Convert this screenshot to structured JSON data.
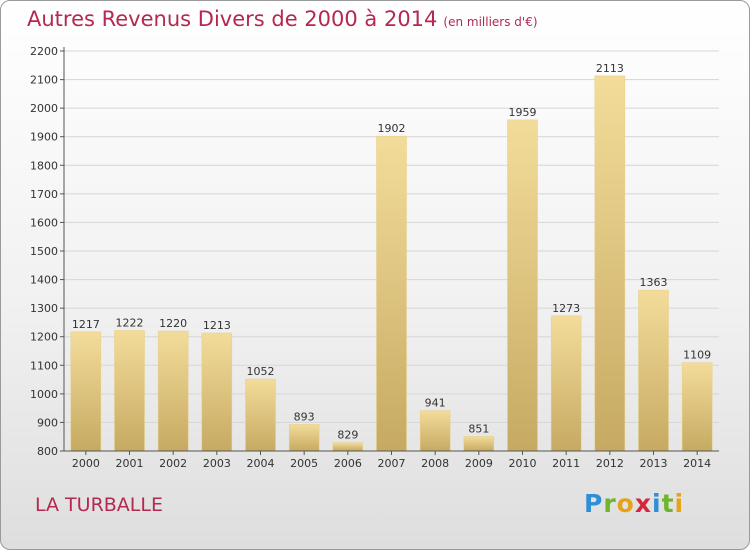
{
  "title": "Autres Revenus Divers de 2000 à 2014",
  "unit_note": "(en milliers d'€)",
  "city": "LA TURBALLE",
  "logo": {
    "letters": [
      "P",
      "r",
      "o",
      "x",
      "i",
      "t",
      "i"
    ],
    "colors": [
      "#2f8fd6",
      "#6fb52c",
      "#e7a21a",
      "#d5273b",
      "#2f8fd6",
      "#6fb52c",
      "#e7a21a"
    ]
  },
  "colors": {
    "accent": "#b5284f",
    "bar_dark": "#c6aa62",
    "bar_light": "#f3dc9a",
    "grid": "#d6d6d6",
    "axis": "#555555"
  },
  "chart_data": {
    "type": "bar",
    "categories": [
      "2000",
      "2001",
      "2002",
      "2003",
      "2004",
      "2005",
      "2006",
      "2007",
      "2008",
      "2009",
      "2010",
      "2011",
      "2012",
      "2013",
      "2014"
    ],
    "values": [
      1217,
      1222,
      1220,
      1213,
      1052,
      893,
      829,
      1902,
      941,
      851,
      1959,
      1273,
      2113,
      1363,
      1109
    ],
    "ylim": [
      800,
      2200
    ],
    "yticks": [
      800,
      900,
      1000,
      1100,
      1200,
      1300,
      1400,
      1500,
      1600,
      1700,
      1800,
      1900,
      2000,
      2100,
      2200
    ],
    "grid": true
  }
}
